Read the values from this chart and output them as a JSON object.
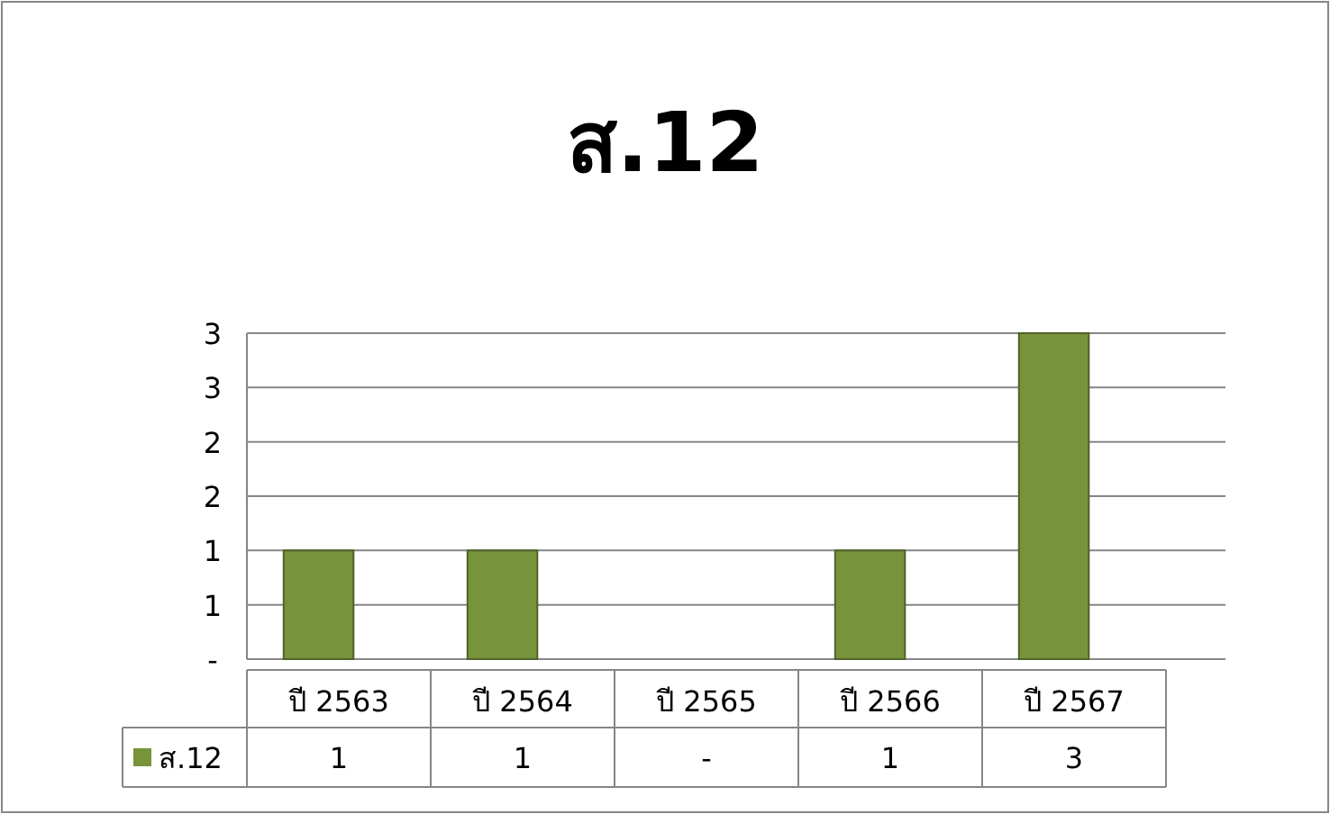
{
  "chart_data": {
    "type": "bar",
    "title": "ส.12",
    "categories": [
      "ปี 2563",
      "ปี 2564",
      "ปี 2565",
      "ปี 2566",
      "ปี 2567"
    ],
    "series": [
      {
        "name": "ส.12",
        "color": "#77933c",
        "values": [
          1,
          1,
          0,
          1,
          3
        ],
        "value_labels": [
          "1",
          "1",
          "-",
          "1",
          "3"
        ]
      }
    ],
    "ylim": [
      0,
      3
    ],
    "yticks": [
      {
        "value": 0,
        "label": "-"
      },
      {
        "value": 0.5,
        "label": "1"
      },
      {
        "value": 1,
        "label": "1"
      },
      {
        "value": 1.5,
        "label": "2"
      },
      {
        "value": 2,
        "label": "2"
      },
      {
        "value": 2.5,
        "label": "3"
      },
      {
        "value": 3,
        "label": "3"
      }
    ],
    "grid": "y",
    "legend": "bottom"
  }
}
